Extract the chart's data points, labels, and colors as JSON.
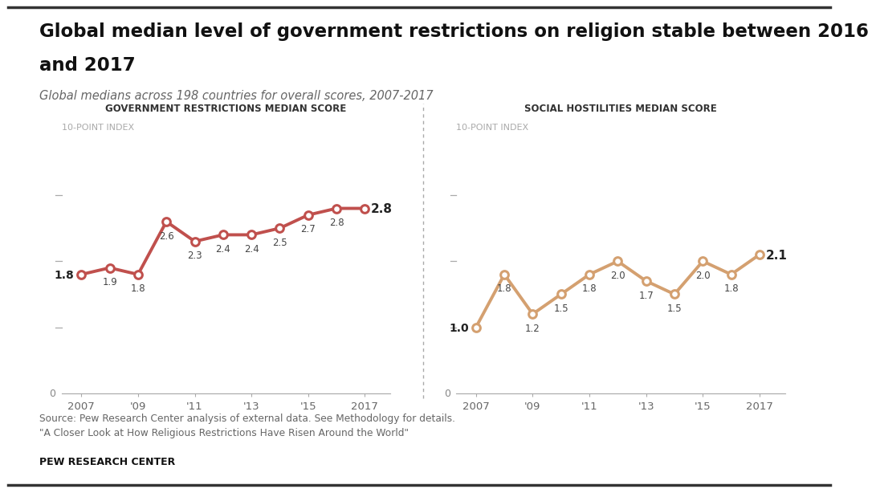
{
  "title_line1": "Global median level of government restrictions on religion stable between 2016",
  "title_line2": "and 2017",
  "subtitle": "Global medians across 198 countries for overall scores, 2007-2017",
  "left_chart_title": "GOVERNMENT RESTRICTIONS MEDIAN SCORE",
  "right_chart_title": "SOCIAL HOSTILITIES MEDIAN SCORE",
  "index_label": "10-POINT INDEX",
  "years": [
    2007,
    2008,
    2009,
    2010,
    2011,
    2012,
    2013,
    2014,
    2015,
    2016,
    2017
  ],
  "gov_values": [
    1.8,
    1.9,
    1.8,
    2.6,
    2.3,
    2.4,
    2.4,
    2.5,
    2.7,
    2.8,
    2.8
  ],
  "soc_values": [
    1.0,
    1.8,
    1.2,
    1.5,
    1.8,
    2.0,
    1.7,
    1.5,
    2.0,
    1.8,
    2.1
  ],
  "gov_line_color": "#c0504d",
  "soc_line_color": "#d4a070",
  "background_color": "#ffffff",
  "source_text": "Source: Pew Research Center analysis of external data. See Methodology for details.\n\"A Closer Look at How Religious Restrictions Have Risen Around the World\"",
  "footer_text": "PEW RESEARCH CENTER",
  "ylim": [
    0,
    3.8
  ],
  "x_tick_labels": [
    "2007",
    "'09",
    "'11",
    "'13",
    "'15",
    "2017"
  ],
  "x_tick_positions": [
    2007,
    2009,
    2011,
    2013,
    2015,
    2017
  ],
  "divider_color": "#aaaaaa",
  "tick_color": "#aaaaaa",
  "dash_color": "#aaaaaa",
  "zero_label_color": "#888888",
  "value_label_color": "#444444",
  "chart_title_color": "#333333",
  "index_label_color": "#aaaaaa"
}
